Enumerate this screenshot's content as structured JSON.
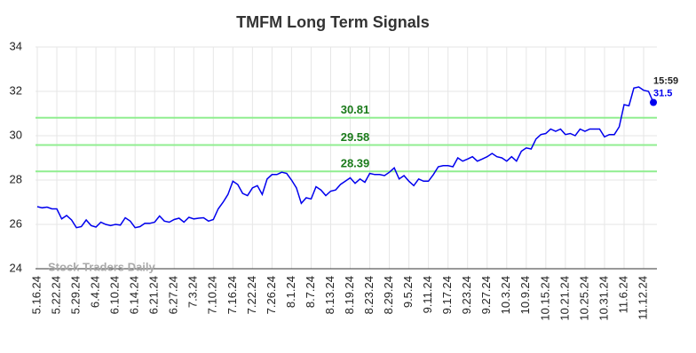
{
  "chart_data": {
    "type": "line",
    "title": "TMFM Long Term Signals",
    "categories": [
      "5.16.24",
      null,
      null,
      null,
      "5.22.24",
      null,
      null,
      null,
      "5.29.24",
      null,
      null,
      null,
      "6.4.24",
      null,
      null,
      null,
      "6.10.24",
      null,
      null,
      null,
      "6.14.24",
      null,
      null,
      null,
      "6.21.24",
      null,
      null,
      null,
      "6.27.24",
      null,
      null,
      null,
      "7.3.24",
      null,
      null,
      null,
      "7.10.24",
      null,
      null,
      null,
      "7.16.24",
      null,
      null,
      null,
      "7.22.24",
      null,
      null,
      null,
      "7.26.24",
      null,
      null,
      null,
      "8.1.24",
      null,
      null,
      null,
      "8.7.24",
      null,
      null,
      null,
      "8.13.24",
      null,
      null,
      null,
      "8.19.24",
      null,
      null,
      null,
      "8.23.24",
      null,
      null,
      null,
      "8.29.24",
      null,
      null,
      null,
      "9.5.24",
      null,
      null,
      null,
      "9.11.24",
      null,
      null,
      null,
      "9.17.24",
      null,
      null,
      null,
      "9.23.24",
      null,
      null,
      null,
      "9.27.24",
      null,
      null,
      null,
      "10.3.24",
      null,
      null,
      null,
      "10.9.24",
      null,
      null,
      null,
      "10.15.24",
      null,
      null,
      null,
      "10.21.24",
      null,
      null,
      null,
      "10.25.24",
      null,
      null,
      null,
      "10.31.24",
      null,
      null,
      null,
      "11.6.24",
      null,
      null,
      null,
      "11.12.24",
      null,
      null
    ],
    "values": [
      26.8,
      26.75,
      26.78,
      26.7,
      26.7,
      26.25,
      26.4,
      26.2,
      25.85,
      25.9,
      26.2,
      25.95,
      25.88,
      26.1,
      26.0,
      25.95,
      26.0,
      25.97,
      26.3,
      26.15,
      25.85,
      25.9,
      26.05,
      26.05,
      26.1,
      26.38,
      26.15,
      26.1,
      26.22,
      26.28,
      26.1,
      26.32,
      26.25,
      26.28,
      26.3,
      26.15,
      26.22,
      26.7,
      27.0,
      27.35,
      27.95,
      27.8,
      27.4,
      27.3,
      27.65,
      27.75,
      27.35,
      28.05,
      28.25,
      28.25,
      28.35,
      28.3,
      28.0,
      27.65,
      26.95,
      27.2,
      27.15,
      27.7,
      27.55,
      27.3,
      27.5,
      27.55,
      27.8,
      27.95,
      28.1,
      27.85,
      28.05,
      27.9,
      28.3,
      28.25,
      28.25,
      28.2,
      28.35,
      28.55,
      28.05,
      28.2,
      27.95,
      27.75,
      28.05,
      27.95,
      27.95,
      28.25,
      28.6,
      28.65,
      28.65,
      28.6,
      29.0,
      28.85,
      28.95,
      29.05,
      28.85,
      28.95,
      29.05,
      29.2,
      29.05,
      29.0,
      28.85,
      29.05,
      28.85,
      29.3,
      29.45,
      29.4,
      29.85,
      30.05,
      30.1,
      30.3,
      30.2,
      30.3,
      30.05,
      30.1,
      30.0,
      30.3,
      30.2,
      30.3,
      30.3,
      30.3,
      29.95,
      30.05,
      30.05,
      30.4,
      31.4,
      31.35,
      32.15,
      32.2,
      32.05,
      32.0,
      31.5
    ],
    "color": "#0000ee",
    "ylim": [
      24,
      34
    ],
    "yticks": [
      24,
      26,
      28,
      30,
      32,
      34
    ],
    "grid": true,
    "hlines": [
      {
        "value": 30.81,
        "color": "#90ee90"
      },
      {
        "value": 29.58,
        "color": "#90ee90"
      },
      {
        "value": 28.39,
        "color": "#90ee90"
      }
    ],
    "last_time": "15:59",
    "watermark": "Stock Traders Daily"
  }
}
